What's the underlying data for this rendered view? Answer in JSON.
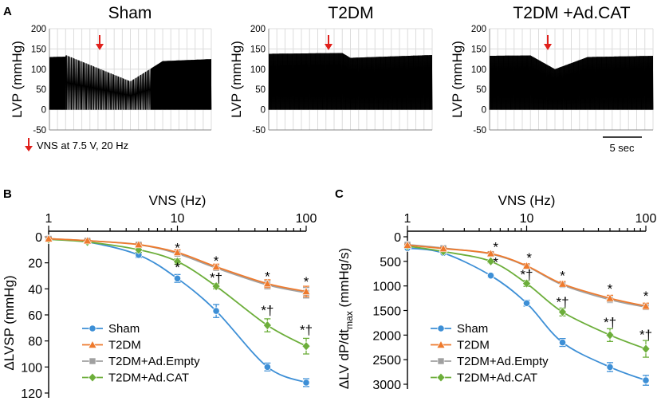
{
  "figure": {
    "panel_a_label": "A",
    "panel_b_label": "B",
    "panel_c_label": "C",
    "vns_note": "VNS at 7.5 V, 20 Hz",
    "scale_bar_label": "5 sec"
  },
  "colors": {
    "sham": "#3d8fd6",
    "t2dm": "#ee7a2d",
    "empty": "#a0a0a0",
    "cat": "#6cae3a",
    "arrow": "#e0201b",
    "trace": "#000000",
    "grid": "#dcdcdc"
  },
  "chart_data": [
    {
      "type": "line",
      "title": "Sham",
      "ylabel": "LVP (mmHg)",
      "ylim": [
        -50,
        200
      ],
      "yticks": [
        "-50",
        "0",
        "50",
        "100",
        "150",
        "200"
      ],
      "x": [
        0,
        2,
        2.01,
        10,
        14,
        20
      ],
      "systolic": [
        130,
        131,
        135,
        70,
        120,
        125
      ],
      "diastolic": [
        0,
        0,
        0,
        0,
        0,
        0
      ],
      "annotation": "VNS"
    },
    {
      "type": "line",
      "title": "T2DM",
      "ylabel": "LVP (mmHg)",
      "ylim": [
        -50,
        200
      ],
      "yticks": [
        "-50",
        "0",
        "50",
        "100",
        "150",
        "200"
      ],
      "x": [
        0,
        9,
        10,
        20
      ],
      "systolic": [
        138,
        140,
        128,
        135
      ],
      "diastolic": [
        0,
        0,
        0,
        0
      ],
      "annotation": "VNS"
    },
    {
      "type": "line",
      "title": "T2DM +Ad.CAT",
      "ylabel": "LVP (mmHg)",
      "ylim": [
        -50,
        200
      ],
      "yticks": [
        "-50",
        "0",
        "50",
        "100",
        "150",
        "200"
      ],
      "x": [
        0,
        5,
        8,
        12,
        20
      ],
      "systolic": [
        133,
        134,
        100,
        130,
        133
      ],
      "diastolic": [
        0,
        0,
        0,
        0,
        0
      ],
      "annotation": "VNS"
    },
    {
      "type": "line",
      "xlabel": "VNS (Hz)",
      "ylabel": "ΔLVSP (mmHg)",
      "xscale": "log",
      "xlim": [
        1,
        100
      ],
      "xticks": [
        "1",
        "10",
        "100"
      ],
      "ylim": [
        0,
        120
      ],
      "yticks": [
        "0",
        "20",
        "40",
        "60",
        "80",
        "100",
        "120"
      ],
      "x": [
        1,
        2,
        5,
        10,
        20,
        50,
        100
      ],
      "series": [
        {
          "name": "Sham",
          "color_key": "sham",
          "marker": "circle",
          "values": [
            2,
            4,
            14,
            32,
            57,
            100,
            112
          ],
          "errors": [
            1,
            1,
            2,
            3,
            5,
            3,
            3
          ]
        },
        {
          "name": "T2DM",
          "color_key": "t2dm",
          "marker": "triangle",
          "values": [
            1.5,
            3,
            6,
            12,
            23,
            36,
            42
          ],
          "errors": [
            1,
            1,
            1,
            2,
            2,
            3,
            4
          ]
        },
        {
          "name": "T2DM+Ad.Empty",
          "color_key": "empty",
          "marker": "square",
          "values": [
            1.5,
            3,
            6,
            13,
            24,
            37,
            43
          ],
          "errors": [
            1,
            1,
            1,
            2,
            2,
            3,
            4
          ]
        },
        {
          "name": "T2DM+Ad.CAT",
          "color_key": "cat",
          "marker": "diamond",
          "values": [
            2,
            4,
            10,
            19,
            38,
            68,
            84
          ],
          "errors": [
            1,
            1,
            2,
            2,
            2,
            5,
            6
          ]
        }
      ],
      "annotations": [
        {
          "x": 10,
          "y": 12,
          "text": "*"
        },
        {
          "x": 20,
          "y": 22,
          "text": "*"
        },
        {
          "x": 50,
          "y": 34,
          "text": "*"
        },
        {
          "x": 100,
          "y": 38,
          "text": "*"
        },
        {
          "x": 10,
          "y": 27,
          "text": "*"
        },
        {
          "x": 20,
          "y": 35,
          "text": "*†"
        },
        {
          "x": 50,
          "y": 60,
          "text": "*†"
        },
        {
          "x": 100,
          "y": 75,
          "text": "*†"
        }
      ],
      "legend": "bottom-left"
    },
    {
      "type": "line",
      "xlabel": "VNS (Hz)",
      "ylabel": "ΔLV dP/dt",
      "ylabel_sub": "max",
      "ylabel_unit": " (mmHg/s)",
      "xscale": "log",
      "xlim": [
        1,
        100
      ],
      "xticks": [
        "1",
        "10",
        "100"
      ],
      "ylim": [
        0,
        3000
      ],
      "yticks": [
        "0",
        "500",
        "1000",
        "1500",
        "2000",
        "2500",
        "3000"
      ],
      "x": [
        1,
        2,
        5,
        10,
        20,
        50,
        100
      ],
      "series": [
        {
          "name": "Sham",
          "color_key": "sham",
          "marker": "circle",
          "values": [
            230,
            330,
            790,
            1350,
            2150,
            2650,
            2920
          ],
          "errors": [
            20,
            25,
            35,
            60,
            80,
            90,
            100
          ]
        },
        {
          "name": "T2DM",
          "color_key": "t2dm",
          "marker": "triangle",
          "values": [
            170,
            240,
            340,
            590,
            960,
            1250,
            1410
          ],
          "errors": [
            20,
            25,
            30,
            40,
            50,
            60,
            60
          ]
        },
        {
          "name": "T2DM+Ad.Empty",
          "color_key": "empty",
          "marker": "square",
          "values": [
            160,
            230,
            350,
            600,
            980,
            1280,
            1430
          ],
          "errors": [
            20,
            25,
            30,
            40,
            50,
            60,
            60
          ]
        },
        {
          "name": "T2DM+Ad.CAT",
          "color_key": "cat",
          "marker": "diamond",
          "values": [
            190,
            300,
            500,
            950,
            1530,
            2000,
            2280
          ],
          "errors": [
            20,
            25,
            30,
            60,
            80,
            130,
            170
          ]
        }
      ],
      "annotations": [
        {
          "x": 5.5,
          "y": 300,
          "text": "*"
        },
        {
          "x": 10.5,
          "y": 520,
          "text": "*"
        },
        {
          "x": 20,
          "y": 880,
          "text": "*"
        },
        {
          "x": 50,
          "y": 1150,
          "text": "*"
        },
        {
          "x": 100,
          "y": 1300,
          "text": "*"
        },
        {
          "x": 5.5,
          "y": 610,
          "text": "*"
        },
        {
          "x": 10,
          "y": 860,
          "text": "*†"
        },
        {
          "x": 20,
          "y": 1420,
          "text": "*†"
        },
        {
          "x": 50,
          "y": 1830,
          "text": "*†"
        },
        {
          "x": 100,
          "y": 2080,
          "text": "*†"
        }
      ],
      "legend": "bottom-left"
    }
  ]
}
